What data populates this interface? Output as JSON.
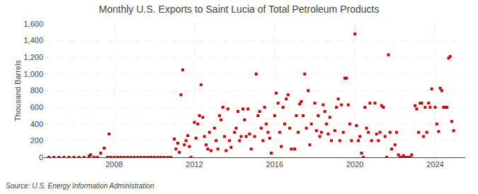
{
  "chart_data": {
    "type": "scatter",
    "title": "Monthly U.S. Exports to Saint Lucia of Total Petroleum Products",
    "y_label": "Thousand Barrels",
    "annotations": [
      "Source: U.S. Energy Information Administration"
    ],
    "color": "#cc0000",
    "marker": "square",
    "grid": true,
    "xlim": [
      2004.5,
      2025.5
    ],
    "xticks": [
      2008,
      2012,
      2016,
      2020,
      2024
    ],
    "ylim": [
      0,
      1600
    ],
    "yticks": [
      0,
      200,
      400,
      600,
      800,
      {
        "value": 1000,
        "label": "1,000"
      },
      {
        "value": 1200,
        "label": "1,200"
      },
      {
        "value": 1400,
        "label": "1,400"
      },
      {
        "value": 1600,
        "label": "1,600"
      }
    ],
    "x": [
      2004.75,
      2005.0,
      2005.25,
      2005.5,
      2005.75,
      2006.0,
      2006.25,
      2006.5,
      2006.75,
      2006.83,
      2007.0,
      2007.17,
      2007.33,
      2007.5,
      2007.67,
      2007.75,
      2007.83,
      2008.0,
      2008.17,
      2008.33,
      2008.5,
      2008.67,
      2008.83,
      2009.0,
      2009.17,
      2009.33,
      2009.5,
      2009.67,
      2009.83,
      2010.0,
      2010.17,
      2010.33,
      2010.5,
      2010.67,
      2010.83,
      2011.0,
      2011.08,
      2011.17,
      2011.25,
      2011.33,
      2011.42,
      2011.5,
      2011.58,
      2011.67,
      2011.75,
      2011.83,
      2012.0,
      2012.08,
      2012.17,
      2012.25,
      2012.33,
      2012.42,
      2012.5,
      2012.58,
      2012.67,
      2012.75,
      2012.83,
      2013.0,
      2013.08,
      2013.17,
      2013.25,
      2013.33,
      2013.42,
      2013.5,
      2013.58,
      2013.67,
      2013.75,
      2013.83,
      2014.0,
      2014.08,
      2014.17,
      2014.25,
      2014.33,
      2014.42,
      2014.5,
      2014.58,
      2014.67,
      2014.75,
      2014.83,
      2015.0,
      2015.08,
      2015.17,
      2015.25,
      2015.33,
      2015.42,
      2015.5,
      2015.58,
      2015.67,
      2015.75,
      2015.83,
      2016.0,
      2016.08,
      2016.17,
      2016.25,
      2016.33,
      2016.42,
      2016.5,
      2016.58,
      2016.67,
      2016.75,
      2016.83,
      2017.0,
      2017.08,
      2017.17,
      2017.25,
      2017.33,
      2017.42,
      2017.5,
      2017.58,
      2017.67,
      2017.75,
      2017.83,
      2018.0,
      2018.08,
      2018.17,
      2018.25,
      2018.33,
      2018.42,
      2018.5,
      2018.58,
      2018.67,
      2018.75,
      2018.83,
      2019.0,
      2019.08,
      2019.17,
      2019.25,
      2019.33,
      2019.42,
      2019.5,
      2019.58,
      2019.67,
      2019.75,
      2019.83,
      2020.0,
      2020.08,
      2020.17,
      2020.25,
      2020.33,
      2020.42,
      2020.5,
      2020.58,
      2020.67,
      2020.75,
      2020.83,
      2021.0,
      2021.08,
      2021.17,
      2021.25,
      2021.33,
      2021.42,
      2021.5,
      2021.58,
      2021.67,
      2021.75,
      2021.83,
      2022.0,
      2022.08,
      2022.17,
      2022.25,
      2022.33,
      2022.42,
      2022.5,
      2022.58,
      2022.67,
      2022.75,
      2022.83,
      2023.0,
      2023.08,
      2023.17,
      2023.25,
      2023.33,
      2023.42,
      2023.5,
      2023.58,
      2023.67,
      2023.75,
      2023.83,
      2024.0,
      2024.08,
      2024.17,
      2024.25,
      2024.33,
      2024.42,
      2024.5,
      2024.58,
      2024.67,
      2024.75,
      2024.83,
      2024.92
    ],
    "values": [
      0,
      0,
      0,
      0,
      0,
      0,
      0,
      0,
      15,
      30,
      0,
      0,
      50,
      110,
      0,
      280,
      0,
      0,
      0,
      0,
      0,
      0,
      0,
      0,
      0,
      0,
      0,
      0,
      0,
      0,
      0,
      0,
      0,
      0,
      0,
      220,
      100,
      170,
      60,
      750,
      1050,
      150,
      200,
      260,
      130,
      0,
      420,
      230,
      400,
      500,
      870,
      480,
      250,
      150,
      100,
      300,
      80,
      350,
      200,
      100,
      500,
      450,
      600,
      250,
      80,
      580,
      200,
      120,
      300,
      350,
      550,
      200,
      250,
      580,
      450,
      250,
      580,
      280,
      100,
      250,
      1000,
      500,
      550,
      350,
      200,
      600,
      400,
      300,
      230,
      50,
      500,
      770,
      650,
      300,
      130,
      600,
      400,
      700,
      750,
      350,
      100,
      100,
      500,
      300,
      640,
      670,
      500,
      1000,
      350,
      800,
      150,
      400,
      650,
      320,
      500,
      250,
      300,
      630,
      550,
      400,
      280,
      480,
      200,
      320,
      600,
      700,
      200,
      630,
      300,
      950,
      950,
      630,
      400,
      200,
      1480,
      380,
      200,
      250,
      50,
      0,
      600,
      350,
      300,
      650,
      200,
      650,
      280,
      200,
      300,
      620,
      600,
      250,
      0,
      1230,
      300,
      100,
      150,
      300,
      30,
      0,
      0,
      20,
      0,
      0,
      0,
      0,
      30,
      620,
      580,
      300,
      650,
      650,
      250,
      600,
      300,
      650,
      600,
      820,
      600,
      400,
      310,
      830,
      800,
      600,
      600,
      600,
      1190,
      1210,
      430,
      320
    ]
  }
}
